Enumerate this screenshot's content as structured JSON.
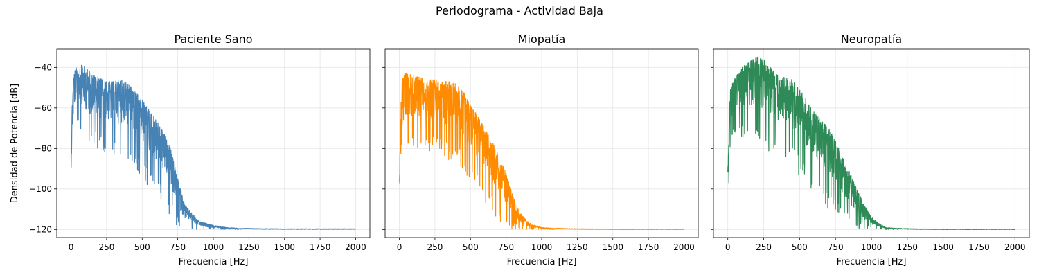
{
  "figure": {
    "title": "Periodograma - Actividad Baja"
  },
  "chart_data": [
    {
      "type": "line",
      "title": "Paciente Sano",
      "color": "#4682b4",
      "xlabel": "Frecuencia [Hz]",
      "ylabel": "Densidad de Potencia [dB]",
      "xlim": [
        -100,
        2100
      ],
      "ylim": [
        -124,
        -31
      ],
      "xticks": [
        0,
        250,
        500,
        750,
        1000,
        1250,
        1500,
        1750,
        2000
      ],
      "yticks": [
        -40,
        -60,
        -80,
        -100,
        -120
      ],
      "grid": true,
      "series": [
        {
          "x": [
            0,
            10,
            20,
            40,
            60,
            80,
            100,
            130,
            160,
            200,
            250,
            300,
            350,
            400,
            450,
            500,
            550,
            600,
            650,
            700,
            750,
            800,
            850,
            900,
            950,
            1000,
            1100,
            1200,
            1300,
            1500,
            2000
          ],
          "upper": [
            -82,
            -52,
            -42,
            -40,
            -39,
            -39,
            -40,
            -42,
            -44,
            -45,
            -47,
            -47,
            -46,
            -48,
            -52,
            -56,
            -61,
            -66,
            -72,
            -80,
            -95,
            -108,
            -112,
            -116,
            -117,
            -118,
            -119,
            -119.5,
            -119.7,
            -119.8,
            -119.8
          ],
          "lower": [
            -99,
            -92,
            -78,
            -70,
            -72,
            -75,
            -78,
            -80,
            -80,
            -82,
            -82,
            -84,
            -86,
            -86,
            -90,
            -94,
            -100,
            -104,
            -108,
            -114,
            -119,
            -120,
            -120,
            -120,
            -120,
            -120,
            -120,
            -120,
            -120,
            -120,
            -120
          ]
        }
      ]
    },
    {
      "type": "line",
      "title": "Miopatía",
      "color": "#ff8c00",
      "xlabel": "Frecuencia [Hz]",
      "ylabel": "",
      "xlim": [
        -100,
        2100
      ],
      "ylim": [
        -124,
        -31
      ],
      "xticks": [
        0,
        250,
        500,
        750,
        1000,
        1250,
        1500,
        1750,
        2000
      ],
      "yticks": [
        -40,
        -60,
        -80,
        -100,
        -120
      ],
      "grid": true,
      "series": [
        {
          "x": [
            0,
            10,
            20,
            40,
            60,
            100,
            150,
            200,
            250,
            300,
            350,
            400,
            450,
            500,
            550,
            600,
            650,
            700,
            750,
            800,
            850,
            900,
            950,
            1000,
            1100,
            1200,
            1300,
            1500,
            2000
          ],
          "upper": [
            -96,
            -60,
            -45,
            -42,
            -43,
            -44,
            -45,
            -46,
            -46,
            -47,
            -47,
            -48,
            -52,
            -58,
            -64,
            -70,
            -76,
            -84,
            -92,
            -104,
            -112,
            -116,
            -118,
            -119,
            -119.5,
            -119.7,
            -119.8,
            -119.9,
            -119.9
          ],
          "lower": [
            -120,
            -110,
            -90,
            -82,
            -80,
            -80,
            -80,
            -82,
            -82,
            -84,
            -86,
            -88,
            -92,
            -97,
            -102,
            -106,
            -112,
            -116,
            -119,
            -120,
            -120,
            -120,
            -120,
            -120,
            -120,
            -120,
            -120,
            -120,
            -120
          ]
        }
      ]
    },
    {
      "type": "line",
      "title": "Neuropatía",
      "color": "#2e8b57",
      "xlabel": "Frecuencia [Hz]",
      "ylabel": "",
      "xlim": [
        -100,
        2100
      ],
      "ylim": [
        -124,
        -31
      ],
      "xticks": [
        0,
        250,
        500,
        750,
        1000,
        1250,
        1500,
        1750,
        2000
      ],
      "yticks": [
        -40,
        -60,
        -80,
        -100,
        -120
      ],
      "grid": true,
      "series": [
        {
          "x": [
            0,
            10,
            20,
            50,
            100,
            150,
            200,
            250,
            300,
            350,
            400,
            450,
            500,
            550,
            600,
            650,
            700,
            750,
            800,
            850,
            900,
            950,
            1000,
            1050,
            1100,
            1200,
            1300,
            1500,
            2000
          ],
          "upper": [
            -90,
            -60,
            -50,
            -45,
            -40,
            -37,
            -35,
            -36,
            -40,
            -44,
            -45,
            -46,
            -50,
            -56,
            -62,
            -66,
            -70,
            -76,
            -84,
            -92,
            -100,
            -108,
            -114,
            -117,
            -119,
            -119.6,
            -119.8,
            -119.9,
            -119.9
          ],
          "lower": [
            -105,
            -95,
            -80,
            -75,
            -76,
            -78,
            -80,
            -80,
            -82,
            -84,
            -86,
            -90,
            -94,
            -98,
            -102,
            -106,
            -110,
            -114,
            -118,
            -120,
            -120,
            -120,
            -120,
            -120,
            -120,
            -120,
            -120,
            -120,
            -120
          ]
        }
      ]
    }
  ]
}
